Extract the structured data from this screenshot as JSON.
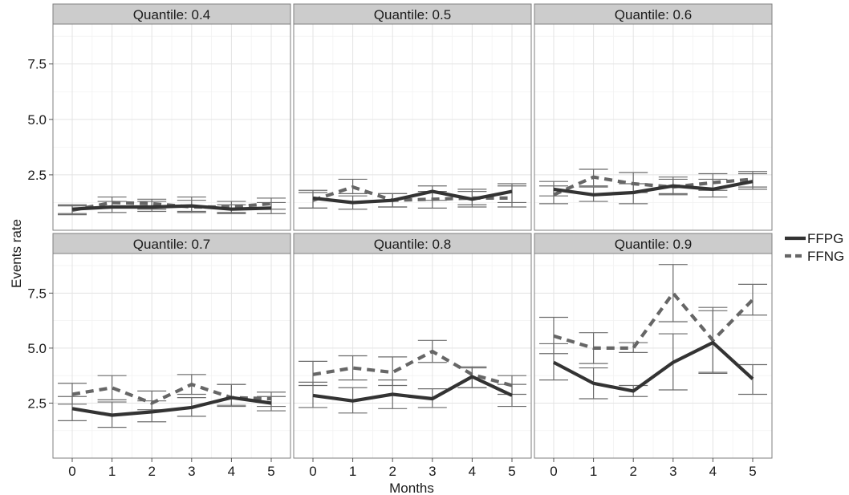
{
  "chart_data": {
    "type": "line",
    "xlabel": "Months",
    "ylabel": "Events rate",
    "x": [
      0,
      1,
      2,
      3,
      4,
      5
    ],
    "ylim": [
      0.0,
      9.3
    ],
    "yticks": [
      "2.5",
      "5.0",
      "7.5"
    ],
    "ytick_values": [
      2.5,
      5.0,
      7.5
    ],
    "grid": true,
    "legend_placement": "right",
    "legend": [
      {
        "name": "FFPG",
        "style": "solid",
        "color": "#333333"
      },
      {
        "name": "FFNG",
        "style": "dashed",
        "color": "#666666"
      }
    ],
    "errorbar_color": "#6b6b6b",
    "panels": [
      {
        "title": "Quantile: 0.4",
        "series": [
          {
            "name": "FFPG",
            "values": [
              0.95,
              1.05,
              1.05,
              1.1,
              0.95,
              1.0
            ],
            "lower": [
              0.75,
              0.8,
              0.85,
              0.85,
              0.75,
              0.75
            ],
            "upper": [
              1.15,
              1.3,
              1.3,
              1.35,
              1.15,
              1.25
            ]
          },
          {
            "name": "FFNG",
            "values": [
              0.9,
              1.25,
              1.2,
              1.05,
              1.05,
              1.2
            ],
            "lower": [
              0.7,
              1.0,
              0.95,
              0.8,
              0.8,
              0.95
            ],
            "upper": [
              1.1,
              1.5,
              1.4,
              1.5,
              1.3,
              1.45
            ]
          }
        ]
      },
      {
        "title": "Quantile: 0.5",
        "series": [
          {
            "name": "FFPG",
            "values": [
              1.45,
              1.25,
              1.35,
              1.75,
              1.4,
              1.75
            ],
            "lower": [
              1.0,
              0.95,
              1.05,
              1.35,
              1.05,
              1.25
            ],
            "upper": [
              1.8,
              1.55,
              1.65,
              2.0,
              1.75,
              2.1
            ]
          },
          {
            "name": "FFNG",
            "values": [
              1.35,
              1.95,
              1.35,
              1.4,
              1.45,
              1.45
            ],
            "lower": [
              1.0,
              1.65,
              1.05,
              1.0,
              1.15,
              1.05
            ],
            "upper": [
              1.7,
              2.3,
              1.65,
              1.75,
              1.85,
              2.0
            ]
          }
        ]
      },
      {
        "title": "Quantile: 0.6",
        "series": [
          {
            "name": "FFPG",
            "values": [
              1.85,
              1.6,
              1.7,
              2.0,
              1.85,
              2.2
            ],
            "lower": [
              1.55,
              1.3,
              1.2,
              1.65,
              1.5,
              1.85
            ],
            "upper": [
              2.2,
              1.95,
              2.1,
              2.4,
              2.3,
              2.55
            ]
          },
          {
            "name": "FFNG",
            "values": [
              1.6,
              2.4,
              2.1,
              1.95,
              2.15,
              2.3
            ],
            "lower": [
              1.2,
              2.0,
              1.7,
              1.6,
              1.8,
              1.95
            ],
            "upper": [
              2.0,
              2.75,
              2.6,
              2.3,
              2.55,
              2.65
            ]
          }
        ]
      },
      {
        "title": "Quantile: 0.7",
        "series": [
          {
            "name": "FFPG",
            "values": [
              2.25,
              1.95,
              2.1,
              2.3,
              2.75,
              2.5
            ],
            "lower": [
              1.7,
              1.4,
              1.65,
              1.9,
              2.35,
              2.15
            ],
            "upper": [
              2.8,
              2.55,
              2.6,
              2.75,
              3.35,
              2.8
            ]
          },
          {
            "name": "FFNG",
            "values": [
              2.9,
              3.2,
              2.5,
              3.35,
              2.75,
              2.7
            ],
            "lower": [
              2.45,
              2.65,
              2.2,
              2.9,
              2.4,
              2.35
            ],
            "upper": [
              3.4,
              3.75,
              3.05,
              3.8,
              3.35,
              3.0
            ]
          }
        ]
      },
      {
        "title": "Quantile: 0.8",
        "series": [
          {
            "name": "FFPG",
            "values": [
              2.85,
              2.6,
              2.9,
              2.7,
              3.7,
              2.85
            ],
            "lower": [
              2.3,
              2.05,
              2.25,
              2.3,
              3.2,
              2.35
            ],
            "upper": [
              3.45,
              3.2,
              3.55,
              3.15,
              4.1,
              3.35
            ]
          },
          {
            "name": "FFNG",
            "values": [
              3.8,
              4.1,
              3.9,
              4.85,
              3.8,
              3.3
            ],
            "lower": [
              3.3,
              3.55,
              3.3,
              4.35,
              3.2,
              2.9
            ],
            "upper": [
              4.4,
              4.65,
              4.6,
              5.35,
              4.15,
              3.75
            ]
          }
        ]
      },
      {
        "title": "Quantile: 0.9",
        "series": [
          {
            "name": "FFPG",
            "values": [
              4.35,
              3.4,
              3.05,
              4.35,
              5.25,
              3.6
            ],
            "lower": [
              3.55,
              2.7,
              2.8,
              3.1,
              3.85,
              2.9
            ],
            "upper": [
              5.2,
              4.1,
              3.3,
              5.65,
              6.7,
              4.25
            ]
          },
          {
            "name": "FFNG",
            "values": [
              5.55,
              5.0,
              5.0,
              7.5,
              5.35,
              7.2
            ],
            "lower": [
              4.75,
              4.3,
              4.8,
              6.2,
              3.9,
              6.5
            ],
            "upper": [
              6.4,
              5.7,
              5.25,
              8.8,
              6.85,
              7.9
            ]
          }
        ]
      }
    ]
  }
}
